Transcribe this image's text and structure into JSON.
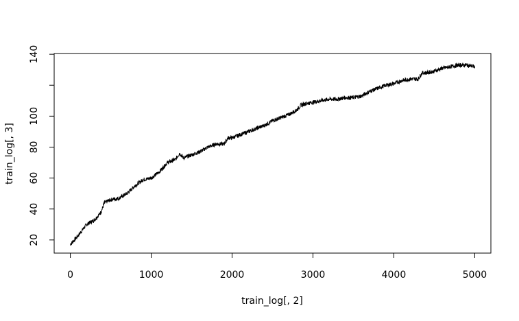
{
  "chart_data": {
    "type": "line",
    "title": "",
    "xlabel": "train_log[, 2]",
    "ylabel": "train_log[, 3]",
    "xlim": [
      -200,
      5200
    ],
    "ylim": [
      11.5,
      140.5
    ],
    "x_ticks": [
      0,
      1000,
      2000,
      3000,
      4000,
      5000
    ],
    "x_tick_labels": [
      "0",
      "1000",
      "2000",
      "3000",
      "4000",
      "5000"
    ],
    "y_ticks": [
      20,
      40,
      60,
      80,
      100,
      120,
      140
    ],
    "y_tick_labels": [
      "20",
      "40",
      "60",
      "80",
      "100",
      "",
      "140"
    ],
    "grid": false,
    "line_color": "#000000",
    "series": [
      {
        "x": [
          0,
          100,
          200,
          300,
          380,
          420,
          500,
          600,
          700,
          800,
          900,
          1000,
          1100,
          1200,
          1300,
          1350,
          1400,
          1500,
          1600,
          1700,
          1800,
          1900,
          1950,
          2000,
          2100,
          2200,
          2300,
          2400,
          2500,
          2600,
          2700,
          2800,
          2850,
          2900,
          3000,
          3100,
          3200,
          3300,
          3400,
          3500,
          3600,
          3700,
          3800,
          3900,
          4000,
          4100,
          4200,
          4300,
          4350,
          4400,
          4500,
          4600,
          4700,
          4800,
          4900,
          5000
        ],
        "values": [
          17,
          23,
          30,
          33,
          38,
          44,
          46,
          47,
          50,
          55,
          59,
          60,
          64,
          70,
          72,
          76,
          73,
          75,
          77,
          80,
          82,
          82,
          86,
          86,
          88,
          90,
          92,
          94,
          97,
          99,
          101,
          104,
          107,
          108,
          109,
          110,
          111,
          111,
          112,
          112,
          113,
          116,
          118,
          120,
          121,
          123,
          124,
          124,
          128,
          128,
          129,
          131,
          132,
          133,
          133,
          132
        ]
      }
    ]
  }
}
